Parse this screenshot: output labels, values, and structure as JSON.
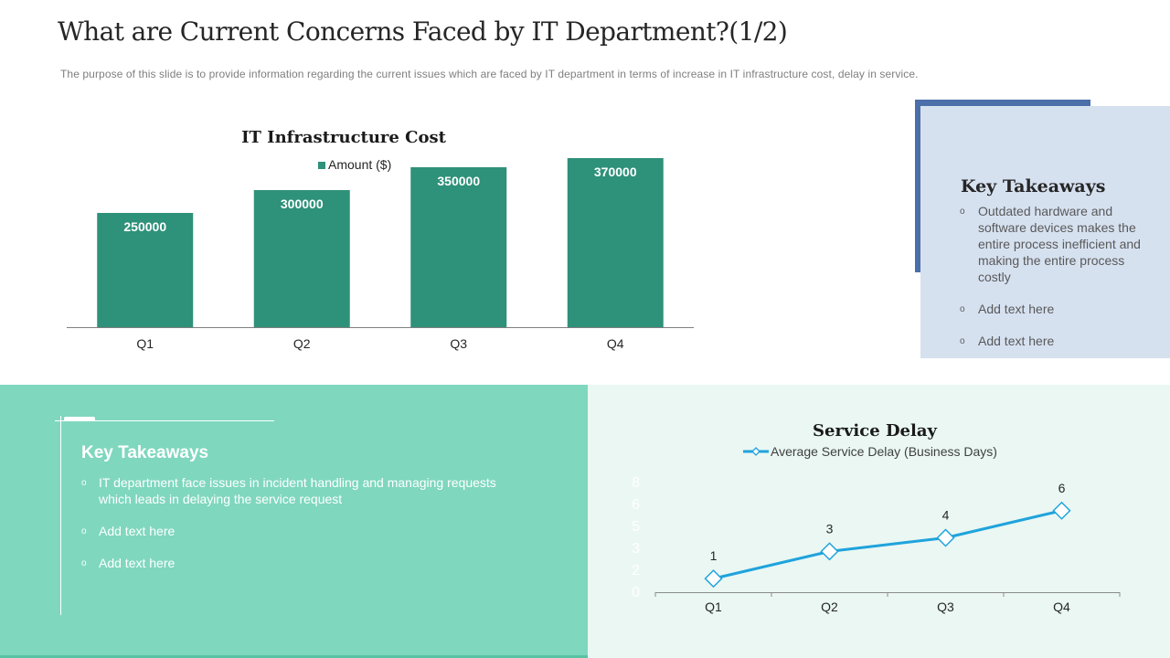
{
  "slide": {
    "title": "What are Current Concerns Faced by IT Department?(1/2)",
    "subtitle": "The purpose of this slide is to provide information regarding the current issues which are faced by IT department in terms of increase in IT infrastructure cost, delay in service."
  },
  "chart_data": [
    {
      "type": "bar",
      "title": "IT Infrastructure Cost",
      "legend": "top",
      "series": [
        {
          "name": "Amount ($)",
          "values": [
            250000,
            300000,
            350000,
            370000
          ],
          "color": "#2e917a"
        }
      ],
      "categories": [
        "Q1",
        "Q2",
        "Q3",
        "Q4"
      ],
      "data_labels": [
        "250000",
        "300000",
        "350000",
        "370000"
      ],
      "ylim": [
        0,
        500000
      ],
      "grid": false
    },
    {
      "type": "line",
      "title": "Service Delay",
      "legend": "top",
      "series": [
        {
          "name": "Average Service Delay (Business Days)",
          "values": [
            1,
            3,
            4,
            6
          ],
          "color": "#1fa3dc"
        }
      ],
      "categories": [
        "Q1",
        "Q2",
        "Q3",
        "Q4"
      ],
      "data_labels": [
        "1",
        "3",
        "4",
        "6"
      ],
      "y_ticks": [
        "0",
        "2",
        "3",
        "5",
        "6",
        "8"
      ],
      "ylim": [
        0,
        8
      ],
      "grid": false
    }
  ],
  "key_takeaways_right": {
    "title": "Key Takeaways",
    "items": [
      "Outdated hardware and software devices makes the entire process inefficient and making the entire process costly",
      "Add text here",
      "Add text here"
    ]
  },
  "key_takeaways_left": {
    "title": "Key Takeaways",
    "items": [
      "IT department face issues in incident handling and managing requests which leads in delaying the service request",
      "Add text here",
      "Add text here"
    ]
  },
  "bullet_glyph": "o",
  "colors": {
    "teal_panel": "#7fd7be",
    "mint_panel": "#eaf7f3",
    "blue_card": "#d6e1f0",
    "blue_accent": "#4a6fa9"
  }
}
